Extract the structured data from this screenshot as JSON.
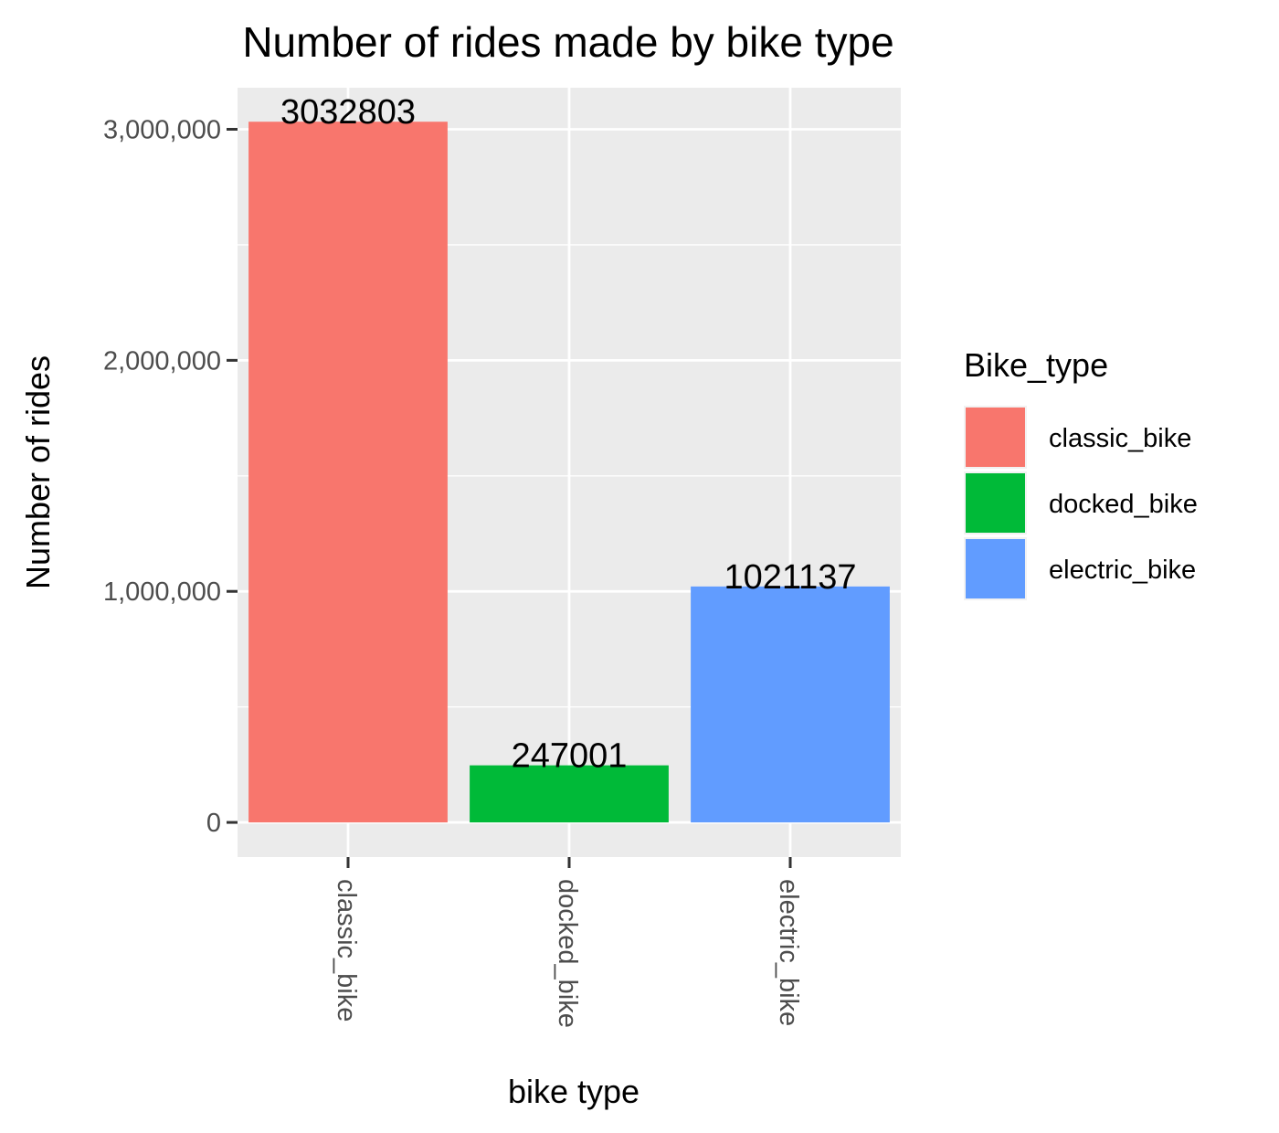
{
  "chart_data": {
    "type": "bar",
    "title": "Number of rides made by bike type",
    "xlabel": "bike type",
    "ylabel": "Number of rides",
    "categories": [
      "classic_bike",
      "docked_bike",
      "electric_bike"
    ],
    "values": [
      3032803,
      247001,
      1021137
    ],
    "value_labels": [
      "3032803",
      "247001",
      "1021137"
    ],
    "colors": [
      "#F8766D",
      "#00BA38",
      "#619CFF"
    ],
    "ylim": [
      -150000,
      3180000
    ],
    "yticks": [
      0,
      1000000,
      2000000,
      3000000
    ],
    "ytick_labels": [
      "0",
      "1,000,000",
      "2,000,000",
      "3,000,000"
    ],
    "grid": true,
    "legend": {
      "title": "Bike_type",
      "position": "right",
      "entries": [
        "classic_bike",
        "docked_bike",
        "electric_bike"
      ]
    }
  },
  "style": {
    "panel_bg": "#EBEBEB",
    "grid_color": "#FFFFFF",
    "tick_text": "#4D4D4D",
    "tick_mark": "#333333",
    "text": "#000000"
  }
}
